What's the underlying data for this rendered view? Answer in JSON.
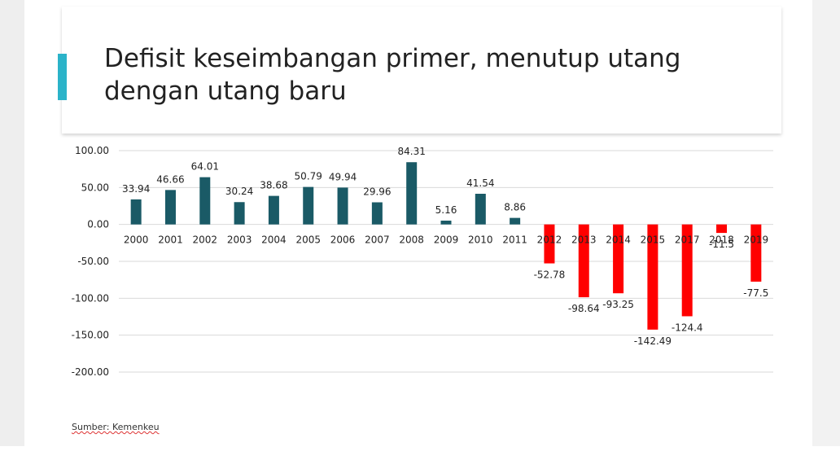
{
  "slide": {
    "title": "Defisit keseimbangan primer, menutup utang\ndengan utang baru",
    "source": "Sumber: Kemenkeu"
  },
  "colors": {
    "positive": "#1a5a66",
    "negative": "#ff0000",
    "accent": "#2bb3c9",
    "grid": "#d9d9d9"
  },
  "chart_data": {
    "type": "bar",
    "title": "",
    "xlabel": "",
    "ylabel": "",
    "ylim": [
      -200,
      100
    ],
    "yticks": [
      100,
      50,
      0,
      -50,
      -100,
      -150,
      -200
    ],
    "ytick_labels": [
      "100.00",
      "50.00",
      "0.00",
      "-50.00",
      "-100.00",
      "-150.00",
      "-200.00"
    ],
    "grid": true,
    "categories": [
      "2000",
      "2001",
      "2002",
      "2003",
      "2004",
      "2005",
      "2006",
      "2007",
      "2008",
      "2009",
      "2010",
      "2011",
      "2012",
      "2013",
      "2014",
      "2015",
      "2017",
      "2018",
      "2019"
    ],
    "values": [
      33.94,
      46.66,
      64.01,
      30.24,
      38.68,
      50.79,
      49.94,
      29.96,
      84.31,
      5.16,
      41.54,
      8.86,
      -52.78,
      -98.64,
      -93.25,
      -142.49,
      -124.4,
      -11.5,
      -77.5
    ],
    "data_labels": [
      "33.94",
      "46.66",
      "64.01",
      "30.24",
      "38.68",
      "50.79",
      "49.94",
      "29.96",
      "84.31",
      "5.16",
      "41.54",
      "8.86",
      "-52.78",
      "-98.64",
      "-93.25",
      "-142.49",
      "-124.4",
      "-11.5",
      "-77.5"
    ]
  }
}
